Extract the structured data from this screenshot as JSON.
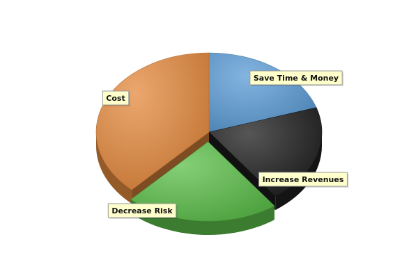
{
  "chart_data": {
    "type": "pie",
    "three_d": true,
    "categories": [
      "Save Time & Money",
      "Increase Revenues",
      "Decrease Risk",
      "Cost"
    ],
    "values": [
      20,
      20,
      22,
      38
    ],
    "unit": "%",
    "exploded": [
      "Decrease Risk"
    ],
    "legend": "none",
    "colors": {
      "Save Time & Money": "#5b9bd5",
      "Increase Revenues": "#1e1e1e",
      "Decrease Risk": "#5cbf4a",
      "Cost": "#e48a3e"
    },
    "label_style": {
      "background": "#ffffcc",
      "border": "#999999"
    }
  }
}
